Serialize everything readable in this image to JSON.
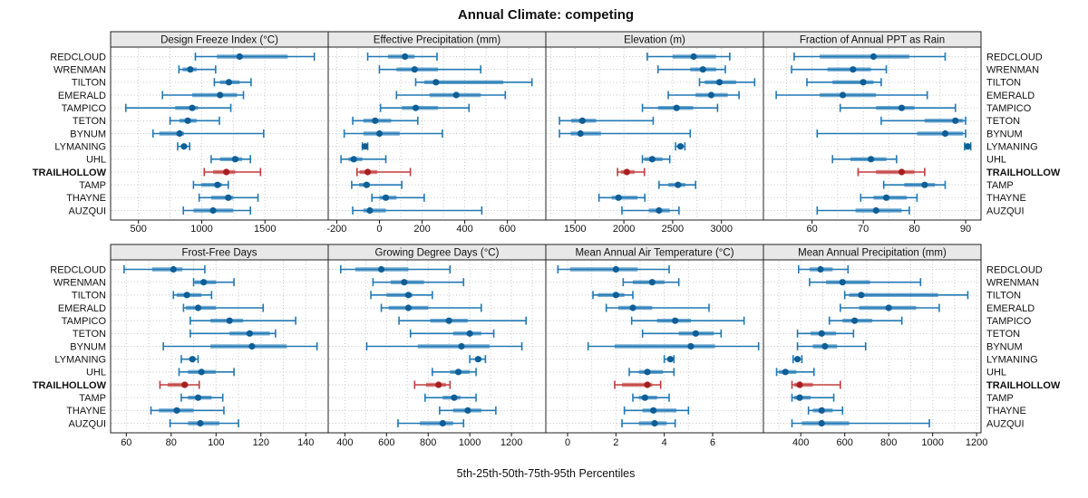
{
  "title": "Annual Climate: competing",
  "caption": "5th-25th-50th-75th-95th Percentiles",
  "percentile_labels": [
    "5th",
    "25th",
    "50th",
    "75th",
    "95th"
  ],
  "stations": [
    "REDCLOUD",
    "WRENMAN",
    "TILTON",
    "EMERALD",
    "TAMPICO",
    "TETON",
    "BYNUM",
    "LYMANING",
    "UHL",
    "TRAILHOLLOW",
    "TAMP",
    "THAYNE",
    "AUZQUI"
  ],
  "highlight_station": "TRAILHOLLOW",
  "colors": {
    "series_line": "#2279b5",
    "series_dot": "#0e5e97",
    "highlight_line": "#c23b3b",
    "highlight_dot": "#a61f1f",
    "panel_header_bg": "#e8e8e8",
    "panel_border": "#222222",
    "grid": "#c6c6c6"
  },
  "chart_data": [
    {
      "type": "percentile-dotplot",
      "title": "Design Freeze Index (°C)",
      "xlim": [
        280,
        2000
      ],
      "ticks": [
        500,
        1000,
        1500
      ],
      "minor_step": 250,
      "series": {
        "REDCLOUD": [
          950,
          1120,
          1300,
          1680,
          1890
        ],
        "WRENMAN": [
          820,
          850,
          910,
          960,
          1110
        ],
        "TILTON": [
          1100,
          1145,
          1215,
          1300,
          1390
        ],
        "EMERALD": [
          690,
          925,
          1145,
          1280,
          1330
        ],
        "TAMPICO": [
          400,
          790,
          925,
          970,
          1230
        ],
        "TETON": [
          750,
          825,
          890,
          960,
          1140
        ],
        "BYNUM": [
          615,
          665,
          825,
          860,
          1490
        ],
        "LYMANING": [
          810,
          845,
          860,
          875,
          905
        ],
        "UHL": [
          1075,
          1145,
          1265,
          1320,
          1385
        ],
        "TRAILHOLLOW": [
          1020,
          1090,
          1195,
          1265,
          1465
        ],
        "TAMP": [
          935,
          995,
          1125,
          1160,
          1210
        ],
        "THAYNE": [
          980,
          1075,
          1210,
          1250,
          1445
        ],
        "AUZQUI": [
          855,
          935,
          1090,
          1250,
          1385
        ]
      }
    },
    {
      "type": "percentile-dotplot",
      "title": "Effective Precipitation (mm)",
      "xlim": [
        -240,
        780
      ],
      "ticks": [
        -200,
        0,
        200,
        400,
        600
      ],
      "minor_step": 100,
      "series": {
        "REDCLOUD": [
          -55,
          40,
          120,
          165,
          270
        ],
        "WRENMAN": [
          0,
          80,
          165,
          275,
          475
        ],
        "TILTON": [
          170,
          210,
          265,
          580,
          715
        ],
        "EMERALD": [
          80,
          235,
          360,
          475,
          590
        ],
        "TAMPICO": [
          5,
          105,
          170,
          275,
          420
        ],
        "TETON": [
          -125,
          -75,
          -20,
          55,
          180
        ],
        "BYNUM": [
          -165,
          -75,
          0,
          95,
          295
        ],
        "LYMANING": [
          -80,
          -72,
          -67,
          -62,
          -55
        ],
        "UHL": [
          -180,
          -145,
          -120,
          -80,
          30
        ],
        "TRAILHOLLOW": [
          -105,
          -93,
          -55,
          -10,
          145
        ],
        "TAMP": [
          -130,
          -95,
          -60,
          -45,
          105
        ],
        "THAYNE": [
          -35,
          0,
          30,
          80,
          210
        ],
        "AUZQUI": [
          -125,
          -75,
          -45,
          30,
          480
        ]
      }
    },
    {
      "type": "percentile-dotplot",
      "title": "Elevation (m)",
      "xlim": [
        1200,
        3430
      ],
      "ticks": [
        1500,
        2000,
        2500,
        3000
      ],
      "minor_step": 250,
      "series": {
        "REDCLOUD": [
          2240,
          2500,
          2715,
          2945,
          3085
        ],
        "WRENMAN": [
          2350,
          2680,
          2810,
          2945,
          3040
        ],
        "TILTON": [
          2775,
          2830,
          2980,
          3150,
          3340
        ],
        "EMERALD": [
          2455,
          2735,
          2895,
          3065,
          3180
        ],
        "TAMPICO": [
          2190,
          2350,
          2540,
          2710,
          2960
        ],
        "TETON": [
          1340,
          1460,
          1575,
          1715,
          2300
        ],
        "BYNUM": [
          1340,
          1455,
          1555,
          1765,
          2680
        ],
        "LYMANING": [
          2530,
          2560,
          2580,
          2600,
          2625
        ],
        "UHL": [
          2190,
          2210,
          2290,
          2395,
          2470
        ],
        "TRAILHOLLOW": [
          1935,
          1970,
          2030,
          2110,
          2210
        ],
        "TAMP": [
          2360,
          2455,
          2555,
          2630,
          2735
        ],
        "THAYNE": [
          1745,
          1875,
          1945,
          2140,
          2215
        ],
        "AUZQUI": [
          1980,
          2255,
          2360,
          2470,
          2565
        ]
      }
    },
    {
      "type": "percentile-dotplot",
      "title": "Fraction of Annual PPT as Rain",
      "xlim": [
        50.5,
        93
      ],
      "ticks": [
        60,
        70,
        80,
        90
      ],
      "minor_step": 5,
      "series": {
        "REDCLOUD": [
          56.5,
          61.5,
          72,
          79,
          86
        ],
        "WRENMAN": [
          56,
          63,
          68,
          71.5,
          74.5
        ],
        "TILTON": [
          59,
          64,
          70,
          72,
          73.5
        ],
        "EMERALD": [
          53,
          61.5,
          66,
          72.5,
          82.5
        ],
        "TAMPICO": [
          65.5,
          72.5,
          77.5,
          80,
          88
        ],
        "TETON": [
          73.5,
          82,
          88,
          89.5,
          90
        ],
        "BYNUM": [
          61,
          80.5,
          86,
          89.5,
          90
        ],
        "LYMANING": [
          89.8,
          90.1,
          90.4,
          90.7,
          91
        ],
        "UHL": [
          64,
          67.5,
          71.5,
          74.5,
          76.5
        ],
        "TRAILHOLLOW": [
          69,
          72.5,
          77.5,
          80,
          82
        ],
        "TAMP": [
          74,
          78,
          82,
          84,
          86
        ],
        "THAYNE": [
          69.5,
          72,
          74.5,
          78.5,
          80.5
        ],
        "AUZQUI": [
          61,
          68.5,
          72.5,
          77.5,
          79
        ]
      }
    },
    {
      "type": "percentile-dotplot",
      "title": "Frost-Free Days",
      "xlim": [
        53,
        150
      ],
      "ticks": [
        60,
        80,
        100,
        120,
        140
      ],
      "minor_step": 10,
      "series": {
        "REDCLOUD": [
          59,
          71.5,
          81,
          85,
          95
        ],
        "WRENMAN": [
          90,
          90.5,
          94.5,
          100,
          108
        ],
        "TILTON": [
          81,
          82.5,
          87,
          93.5,
          98
        ],
        "EMERALD": [
          85.5,
          86.5,
          92,
          100,
          121
        ],
        "TAMPICO": [
          88.5,
          97.5,
          106,
          112,
          135.5
        ],
        "TETON": [
          88.5,
          106,
          115,
          124,
          126.5
        ],
        "BYNUM": [
          76.5,
          97.5,
          116,
          131.5,
          145
        ],
        "LYMANING": [
          84.5,
          88,
          89.5,
          90.5,
          92
        ],
        "UHL": [
          83.5,
          87.5,
          93.5,
          100,
          108
        ],
        "TRAILHOLLOW": [
          75,
          78.5,
          86,
          87.5,
          92.5
        ],
        "TAMP": [
          84.5,
          87.5,
          92,
          98,
          103
        ],
        "THAYNE": [
          71,
          74.5,
          82.5,
          90,
          103.5
        ],
        "AUZQUI": [
          79.5,
          87.5,
          93,
          101.5,
          110
        ]
      }
    },
    {
      "type": "percentile-dotplot",
      "title": "Growing Degree Days (°C)",
      "xlim": [
        320,
        1365
      ],
      "ticks": [
        400,
        600,
        800,
        1000,
        1200
      ],
      "minor_step": 100,
      "series": {
        "REDCLOUD": [
          380,
          450,
          575,
          705,
          905
        ],
        "WRENMAN": [
          535,
          620,
          685,
          780,
          970
        ],
        "TILTON": [
          525,
          600,
          705,
          725,
          820
        ],
        "EMERALD": [
          575,
          610,
          705,
          800,
          1055
        ],
        "TAMPICO": [
          660,
          810,
          900,
          990,
          1270
        ],
        "TETON": [
          715,
          920,
          1000,
          1055,
          1115
        ],
        "BYNUM": [
          505,
          750,
          960,
          1095,
          1250
        ],
        "LYMANING": [
          1000,
          1025,
          1040,
          1055,
          1075
        ],
        "UHL": [
          820,
          905,
          945,
          1000,
          1030
        ],
        "TRAILHOLLOW": [
          735,
          790,
          850,
          885,
          905
        ],
        "TAMP": [
          785,
          870,
          925,
          955,
          1030
        ],
        "THAYNE": [
          855,
          920,
          990,
          1055,
          1125
        ],
        "AUZQUI": [
          655,
          760,
          870,
          920,
          970
        ]
      }
    },
    {
      "type": "percentile-dotplot",
      "title": "Mean Annual Air Temperature (°C)",
      "xlim": [
        -0.9,
        8.1
      ],
      "ticks": [
        0,
        2,
        4,
        6
      ],
      "minor_step": 1,
      "series": {
        "REDCLOUD": [
          -0.4,
          0.1,
          2.0,
          2.9,
          4.2
        ],
        "WRENMAN": [
          2.3,
          2.7,
          3.5,
          4.0,
          4.6
        ],
        "TILTON": [
          1.05,
          1.25,
          2.0,
          2.35,
          2.7
        ],
        "EMERALD": [
          1.6,
          2.1,
          2.7,
          3.5,
          5.85
        ],
        "TAMPICO": [
          2.65,
          3.7,
          4.45,
          5.1,
          7.3
        ],
        "TETON": [
          3.1,
          4.6,
          5.3,
          6.05,
          6.35
        ],
        "BYNUM": [
          0.85,
          1.95,
          5.1,
          6.1,
          7.9
        ],
        "LYMANING": [
          4.0,
          4.15,
          4.25,
          4.3,
          4.4
        ],
        "UHL": [
          2.55,
          2.95,
          3.3,
          3.95,
          4.4
        ],
        "TRAILHOLLOW": [
          1.95,
          2.25,
          3.3,
          3.5,
          3.85
        ],
        "TAMP": [
          2.7,
          2.95,
          3.2,
          3.7,
          4.2
        ],
        "THAYNE": [
          2.35,
          3.1,
          3.55,
          4.5,
          5.0
        ],
        "AUZQUI": [
          2.25,
          2.95,
          3.6,
          4.1,
          4.45
        ]
      }
    },
    {
      "type": "percentile-dotplot",
      "title": "Mean Annual Precipitation (mm)",
      "xlim": [
        230,
        1220
      ],
      "ticks": [
        400,
        600,
        800,
        1000,
        1200
      ],
      "minor_step": 100,
      "series": {
        "REDCLOUD": [
          390,
          440,
          490,
          545,
          615
        ],
        "WRENMAN": [
          440,
          515,
          590,
          715,
          945
        ],
        "TILTON": [
          600,
          620,
          675,
          1025,
          1160
        ],
        "EMERALD": [
          580,
          665,
          800,
          925,
          1030
        ],
        "TAMPICO": [
          530,
          590,
          645,
          725,
          860
        ],
        "TETON": [
          385,
          445,
          495,
          560,
          640
        ],
        "BYNUM": [
          385,
          455,
          510,
          565,
          695
        ],
        "LYMANING": [
          365,
          375,
          385,
          390,
          405
        ],
        "UHL": [
          290,
          300,
          330,
          380,
          460
        ],
        "TRAILHOLLOW": [
          360,
          370,
          395,
          455,
          580
        ],
        "TAMP": [
          360,
          370,
          395,
          445,
          550
        ],
        "THAYNE": [
          435,
          455,
          495,
          545,
          590
        ],
        "AUZQUI": [
          360,
          405,
          495,
          620,
          985
        ]
      }
    }
  ]
}
